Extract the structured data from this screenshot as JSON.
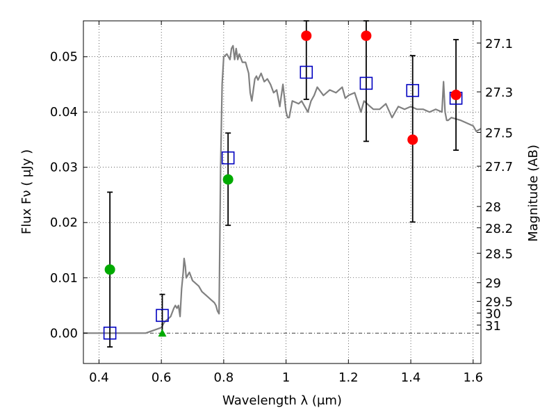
{
  "chart_data": {
    "type": "scatter",
    "xlabel": "Wavelength  λ (μm)",
    "ylabel": "Flux  Fν  ( μJy )",
    "ylabel_right": "Magnitude (AB)",
    "xlim": [
      0.35,
      1.625
    ],
    "ylim": [
      -0.0055,
      0.0565
    ],
    "x_ticks": [
      0.4,
      0.6,
      0.8,
      1.0,
      1.2,
      1.4,
      1.6
    ],
    "x_tick_labels": [
      "0.4",
      "0.6",
      "0.8",
      "1",
      "1.2",
      "1.4",
      "1.6"
    ],
    "y_ticks": [
      0.0,
      0.01,
      0.02,
      0.03,
      0.04,
      0.05
    ],
    "y_tick_labels": [
      "0.00",
      "0.01",
      "0.02",
      "0.03",
      "0.04",
      "0.05"
    ],
    "right_axis_ticks": [
      {
        "label": "27.1",
        "mag": 27.1
      },
      {
        "label": "27.3",
        "mag": 27.3
      },
      {
        "label": "27.5",
        "mag": 27.5
      },
      {
        "label": "27.7",
        "mag": 27.7
      },
      {
        "label": "28",
        "mag": 28.0
      },
      {
        "label": "28.2",
        "mag": 28.2
      },
      {
        "label": "28.5",
        "mag": 28.5
      },
      {
        "label": "29",
        "mag": 29.0
      },
      {
        "label": "29.5",
        "mag": 29.5
      },
      {
        "label": "30",
        "mag": 30.0
      },
      {
        "label": "31",
        "mag": 31.0
      }
    ],
    "grid": true,
    "zero_line": true,
    "series": [
      {
        "kind": "model_spectrum",
        "color": "#808080",
        "x": [
          0.35,
          0.55,
          0.6,
          0.61,
          0.62,
          0.63,
          0.64,
          0.645,
          0.65,
          0.655,
          0.66,
          0.665,
          0.67,
          0.673,
          0.677,
          0.68,
          0.69,
          0.7,
          0.71,
          0.72,
          0.73,
          0.74,
          0.75,
          0.76,
          0.77,
          0.775,
          0.78,
          0.785,
          0.79,
          0.795,
          0.8,
          0.81,
          0.82,
          0.825,
          0.83,
          0.835,
          0.84,
          0.845,
          0.85,
          0.86,
          0.87,
          0.88,
          0.885,
          0.89,
          0.9,
          0.905,
          0.91,
          0.92,
          0.93,
          0.94,
          0.95,
          0.96,
          0.97,
          0.98,
          0.99,
          1.0,
          1.005,
          1.01,
          1.02,
          1.04,
          1.05,
          1.06,
          1.07,
          1.08,
          1.09,
          1.1,
          1.12,
          1.14,
          1.16,
          1.18,
          1.19,
          1.2,
          1.22,
          1.24,
          1.25,
          1.27,
          1.28,
          1.3,
          1.32,
          1.34,
          1.36,
          1.38,
          1.4,
          1.42,
          1.44,
          1.46,
          1.48,
          1.5,
          1.505,
          1.51,
          1.515,
          1.52,
          1.53,
          1.56,
          1.58,
          1.6,
          1.61,
          1.625
        ],
        "y": [
          0.0,
          0.0,
          0.001,
          0.002,
          0.0025,
          0.003,
          0.0045,
          0.005,
          0.0045,
          0.005,
          0.003,
          0.008,
          0.011,
          0.0135,
          0.012,
          0.01,
          0.011,
          0.0095,
          0.009,
          0.0085,
          0.0075,
          0.007,
          0.0065,
          0.006,
          0.0055,
          0.005,
          0.004,
          0.0035,
          0.03,
          0.045,
          0.05,
          0.0505,
          0.0495,
          0.0515,
          0.052,
          0.0495,
          0.0515,
          0.0495,
          0.0505,
          0.049,
          0.049,
          0.047,
          0.0435,
          0.042,
          0.046,
          0.0465,
          0.0458,
          0.047,
          0.0455,
          0.046,
          0.045,
          0.0435,
          0.044,
          0.041,
          0.045,
          0.04,
          0.039,
          0.039,
          0.042,
          0.0415,
          0.042,
          0.041,
          0.04,
          0.042,
          0.043,
          0.0445,
          0.043,
          0.044,
          0.0435,
          0.0445,
          0.0425,
          0.043,
          0.0435,
          0.04,
          0.042,
          0.041,
          0.0405,
          0.0405,
          0.0415,
          0.039,
          0.041,
          0.0405,
          0.041,
          0.0405,
          0.0405,
          0.04,
          0.0405,
          0.04,
          0.0455,
          0.04,
          0.0385,
          0.0385,
          0.039,
          0.0385,
          0.038,
          0.0375,
          0.0365,
          0.037
        ]
      },
      {
        "kind": "model_photometry",
        "marker": "open-square",
        "color": "#0000c0",
        "points": [
          {
            "x": 0.435,
            "y": 0.0
          },
          {
            "x": 0.603,
            "y": 0.0032
          },
          {
            "x": 0.814,
            "y": 0.0317
          },
          {
            "x": 1.065,
            "y": 0.0472
          },
          {
            "x": 1.257,
            "y": 0.0452
          },
          {
            "x": 1.406,
            "y": 0.0439
          },
          {
            "x": 1.545,
            "y": 0.0425
          }
        ]
      },
      {
        "kind": "error_bars",
        "color": "#000000",
        "bars": [
          {
            "x": 0.435,
            "low": -0.0025,
            "high": 0.0255
          },
          {
            "x": 0.603,
            "low": -0.0005,
            "high": 0.007
          },
          {
            "x": 0.814,
            "low": 0.0195,
            "high": 0.0362
          },
          {
            "x": 1.065,
            "low": 0.0423,
            "high": 0.0565
          },
          {
            "x": 1.257,
            "low": 0.0347,
            "high": 0.0565
          },
          {
            "x": 1.406,
            "low": 0.0201,
            "high": 0.0502
          },
          {
            "x": 1.545,
            "low": 0.0331,
            "high": 0.0531
          }
        ]
      },
      {
        "kind": "observed_green",
        "marker": "circle",
        "color": "#00aa00",
        "points": [
          {
            "x": 0.435,
            "y": 0.0115
          },
          {
            "x": 0.814,
            "y": 0.0278
          }
        ]
      },
      {
        "kind": "upper_limit_green",
        "marker": "triangle",
        "color": "#00aa00",
        "points": [
          {
            "x": 0.603,
            "y": 0.0
          }
        ]
      },
      {
        "kind": "observed_red",
        "marker": "circle",
        "color": "#ff0000",
        "points": [
          {
            "x": 1.065,
            "y": 0.0538
          },
          {
            "x": 1.257,
            "y": 0.0538
          },
          {
            "x": 1.406,
            "y": 0.035
          },
          {
            "x": 1.545,
            "y": 0.0431
          }
        ]
      }
    ]
  }
}
